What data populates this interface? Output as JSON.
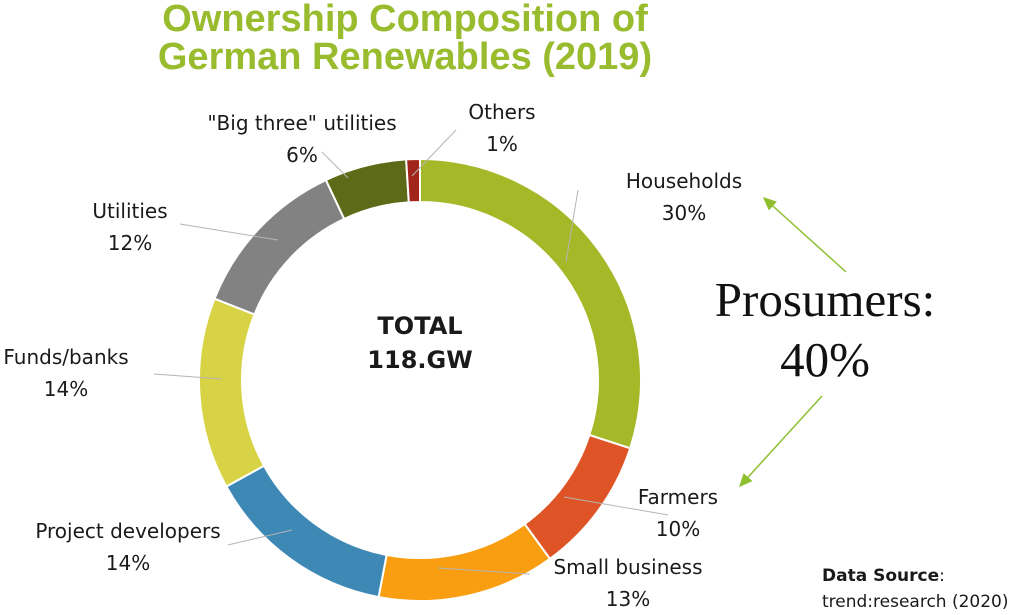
{
  "title": {
    "line1": "Ownership Composition of",
    "line2": "German Renewables (2019)"
  },
  "center": {
    "line1": "TOTAL",
    "line2": "118.GW"
  },
  "annotation": {
    "line1": "Prosumers:",
    "line2": "40%"
  },
  "source": {
    "label": "Data Source",
    "colon": ":",
    "text": "trend:research (2020)"
  },
  "colors": {
    "title": "#99bc2e",
    "arrow": "#8fbf2f"
  },
  "chart_data": {
    "type": "pie",
    "variant": "donut",
    "title": "Ownership Composition of German Renewables (2019)",
    "slices": [
      {
        "name": "Households",
        "value": 30,
        "value_label": "30%",
        "color": "#a5b827"
      },
      {
        "name": "Farmers",
        "value": 10,
        "value_label": "10%",
        "color": "#df5426"
      },
      {
        "name": "Small business",
        "value": 13,
        "value_label": "13%",
        "color": "#f89e10"
      },
      {
        "name": "Project developers",
        "value": 14,
        "value_label": "14%",
        "color": "#3e88b5"
      },
      {
        "name": "Funds/banks",
        "value": 14,
        "value_label": "14%",
        "color": "#d7d344"
      },
      {
        "name": "Utilities",
        "value": 12,
        "value_label": "12%",
        "color": "#828282"
      },
      {
        "name": "\"Big three\" utilities",
        "value": 6,
        "value_label": "6%",
        "color": "#5d6b18"
      },
      {
        "name": "Others",
        "value": 1,
        "value_label": "1%",
        "color": "#a2251c"
      }
    ],
    "legend": "none"
  }
}
